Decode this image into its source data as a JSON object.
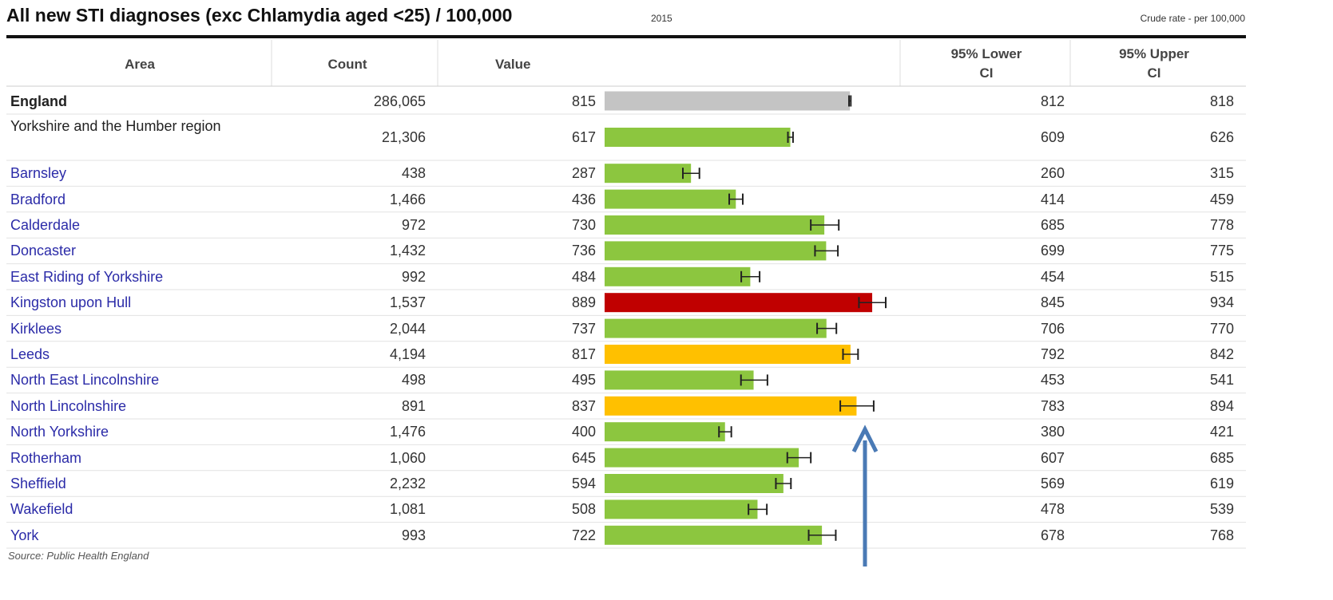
{
  "title": "All new STI diagnoses (exc Chlamydia aged <25) / 100,000",
  "period": "2015",
  "measure": "Crude rate - per 100,000",
  "columns": [
    "Area",
    "Count",
    "Value",
    "95% Lower CI",
    "95% Upper CI"
  ],
  "rows": [
    {
      "area": "England",
      "count": "286,065",
      "value": 815,
      "lower": 812,
      "upper": 818,
      "color": "#c4c4c4"
    },
    {
      "area": "Yorkshire and the Humber region",
      "count": "21,306",
      "value": 617,
      "lower": 609,
      "upper": 626,
      "color": "#8cc63f"
    },
    {
      "area": "Barnsley",
      "count": "438",
      "value": 287,
      "lower": 260,
      "upper": 315,
      "color": "#8cc63f"
    },
    {
      "area": "Bradford",
      "count": "1,466",
      "value": 436,
      "lower": 414,
      "upper": 459,
      "color": "#8cc63f"
    },
    {
      "area": "Calderdale",
      "count": "972",
      "value": 730,
      "lower": 685,
      "upper": 778,
      "color": "#8cc63f"
    },
    {
      "area": "Doncaster",
      "count": "1,432",
      "value": 736,
      "lower": 699,
      "upper": 775,
      "color": "#8cc63f"
    },
    {
      "area": "East Riding of Yorkshire",
      "count": "992",
      "value": 484,
      "lower": 454,
      "upper": 515,
      "color": "#8cc63f"
    },
    {
      "area": "Kingston upon Hull",
      "count": "1,537",
      "value": 889,
      "lower": 845,
      "upper": 934,
      "color": "#c00000"
    },
    {
      "area": "Kirklees",
      "count": "2,044",
      "value": 737,
      "lower": 706,
      "upper": 770,
      "color": "#8cc63f"
    },
    {
      "area": "Leeds",
      "count": "4,194",
      "value": 817,
      "lower": 792,
      "upper": 842,
      "color": "#ffc000"
    },
    {
      "area": "North East Lincolnshire",
      "count": "498",
      "value": 495,
      "lower": 453,
      "upper": 541,
      "color": "#8cc63f"
    },
    {
      "area": "North Lincolnshire",
      "count": "891",
      "value": 837,
      "lower": 783,
      "upper": 894,
      "color": "#ffc000"
    },
    {
      "area": "North Yorkshire",
      "count": "1,476",
      "value": 400,
      "lower": 380,
      "upper": 421,
      "color": "#8cc63f"
    },
    {
      "area": "Rotherham",
      "count": "1,060",
      "value": 645,
      "lower": 607,
      "upper": 685,
      "color": "#8cc63f"
    },
    {
      "area": "Sheffield",
      "count": "2,232",
      "value": 594,
      "lower": 569,
      "upper": 619,
      "color": "#8cc63f"
    },
    {
      "area": "Wakefield",
      "count": "1,081",
      "value": 508,
      "lower": 478,
      "upper": 539,
      "color": "#8cc63f"
    },
    {
      "area": "York",
      "count": "993",
      "value": 722,
      "lower": 678,
      "upper": 768,
      "color": "#8cc63f"
    }
  ],
  "source": "Source: Public Health England"
}
